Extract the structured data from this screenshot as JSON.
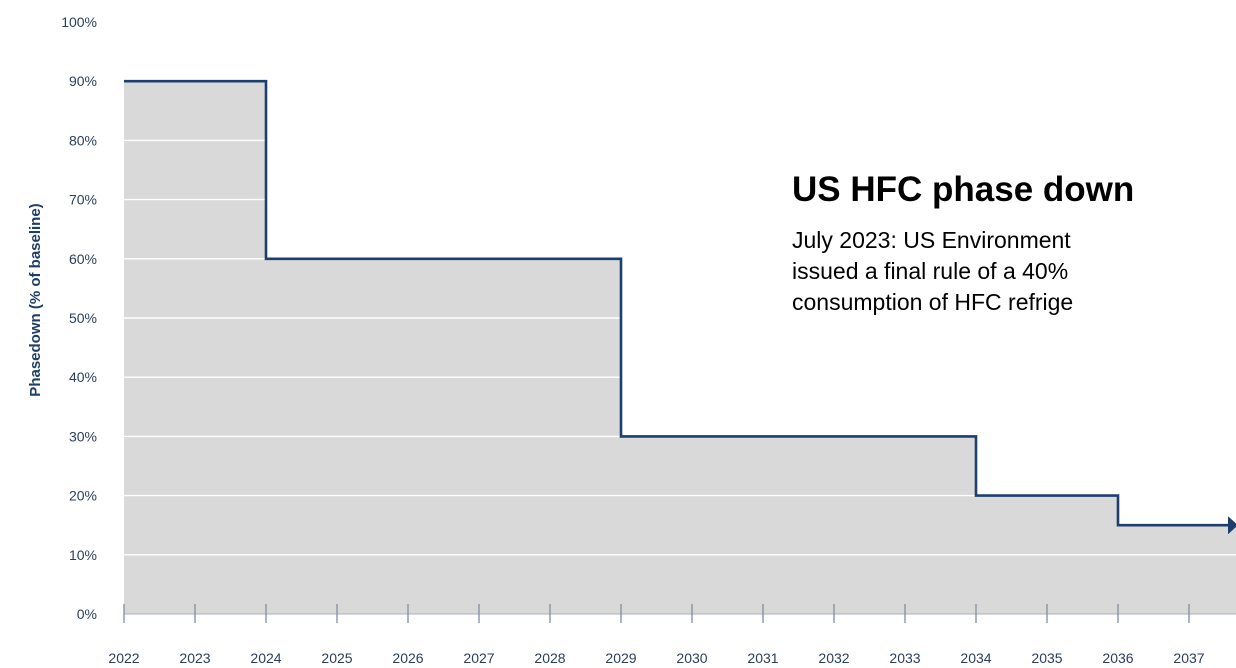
{
  "chart_data": {
    "type": "area",
    "step": true,
    "title": "US HFC phase down",
    "annotation_lines": [
      "July 2023: US Environment",
      "issued a final rule of a 40%",
      "consumption of HFC refrige"
    ],
    "xlabel": "",
    "ylabel": "Phasedown (% of baseline)",
    "x_ticks": [
      "2022",
      "2023",
      "2024",
      "2025",
      "2026",
      "2027",
      "2028",
      "2029",
      "2030",
      "2031",
      "2032",
      "2033",
      "2034",
      "2035",
      "2036",
      "2037"
    ],
    "y_ticks": [
      "0%",
      "10%",
      "20%",
      "30%",
      "40%",
      "50%",
      "60%",
      "70%",
      "80%",
      "90%",
      "100%"
    ],
    "ylim": [
      0,
      100
    ],
    "xlim": [
      2022,
      2037.8
    ],
    "steps": [
      {
        "from": 2022,
        "to": 2024,
        "value": 90
      },
      {
        "from": 2024,
        "to": 2029,
        "value": 60
      },
      {
        "from": 2029,
        "to": 2034,
        "value": 30
      },
      {
        "from": 2034,
        "to": 2036,
        "value": 20
      },
      {
        "from": 2036,
        "to": 2037.8,
        "value": 15
      }
    ],
    "grid": true,
    "colors": {
      "fill": "#d9d9d9",
      "line": "#1d3f6e",
      "grid": "#ffffff",
      "text": "#2b3e5c"
    }
  }
}
